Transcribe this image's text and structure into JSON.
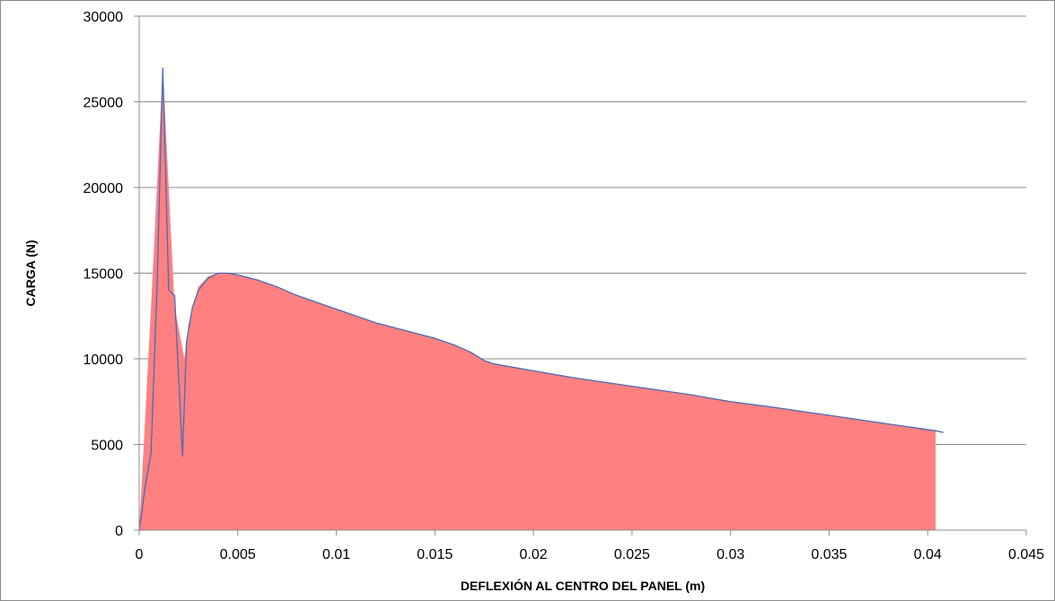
{
  "chart_data": {
    "type": "area",
    "xlabel": "DEFLEXIÓN AL CENTRO DEL PANEL (m)",
    "ylabel": "CARGA (N)",
    "xlim": [
      0,
      0.045
    ],
    "ylim": [
      0,
      30000
    ],
    "xticks": [
      0,
      0.005,
      0.01,
      0.015,
      0.02,
      0.025,
      0.03,
      0.035,
      0.04,
      0.045
    ],
    "xtick_labels": [
      "0",
      "0.005",
      "0.01",
      "0.015",
      "0.02",
      "0.025",
      "0.03",
      "0.035",
      "0.04",
      "0.045"
    ],
    "yticks": [
      0,
      5000,
      10000,
      15000,
      20000,
      25000,
      30000
    ],
    "ytick_labels": [
      "0",
      "5000",
      "10000",
      "15000",
      "20000",
      "25000",
      "30000"
    ],
    "grid": "horizontal",
    "series": [
      {
        "kind": "area",
        "color": "#ff8080",
        "x": [
          0,
          0.0006,
          0.0012,
          0.0018,
          0.0023,
          0.0025,
          0.003,
          0.0035,
          0.004,
          0.0045,
          0.005,
          0.006,
          0.007,
          0.008,
          0.009,
          0.01,
          0.011,
          0.012,
          0.013,
          0.014,
          0.015,
          0.016,
          0.0168,
          0.0175,
          0.018,
          0.02,
          0.022,
          0.025,
          0.028,
          0.03,
          0.032,
          0.035,
          0.038,
          0.0404
        ],
        "y": [
          0,
          13000,
          27000,
          13000,
          10000,
          12000,
          14200,
          14800,
          15000,
          15000,
          14900,
          14600,
          14200,
          13700,
          13300,
          12900,
          12500,
          12100,
          11800,
          11500,
          11200,
          10800,
          10400,
          9900,
          9700,
          9300,
          8900,
          8400,
          7900,
          7500,
          7200,
          6700,
          6200,
          5800
        ]
      },
      {
        "kind": "line",
        "color": "#4a6bb5",
        "x": [
          0,
          0.0003,
          0.0006,
          0.0009,
          0.0012,
          0.0015,
          0.0018,
          0.002,
          0.0022,
          0.0024,
          0.0027,
          0.003,
          0.0035,
          0.004,
          0.0045,
          0.005,
          0.006,
          0.007,
          0.008,
          0.009,
          0.01,
          0.011,
          0.012,
          0.013,
          0.014,
          0.015,
          0.016,
          0.0168,
          0.0175,
          0.018,
          0.02,
          0.022,
          0.025,
          0.028,
          0.03,
          0.032,
          0.035,
          0.038,
          0.0404,
          0.0408
        ],
        "y": [
          0,
          2500,
          4500,
          14000,
          27000,
          14000,
          13700,
          9000,
          4300,
          11000,
          13000,
          14000,
          14700,
          15000,
          15000,
          14900,
          14600,
          14200,
          13700,
          13300,
          12900,
          12500,
          12100,
          11800,
          11500,
          11200,
          10800,
          10400,
          9900,
          9700,
          9300,
          8900,
          8400,
          7900,
          7500,
          7200,
          6700,
          6200,
          5800,
          5700
        ]
      }
    ]
  }
}
